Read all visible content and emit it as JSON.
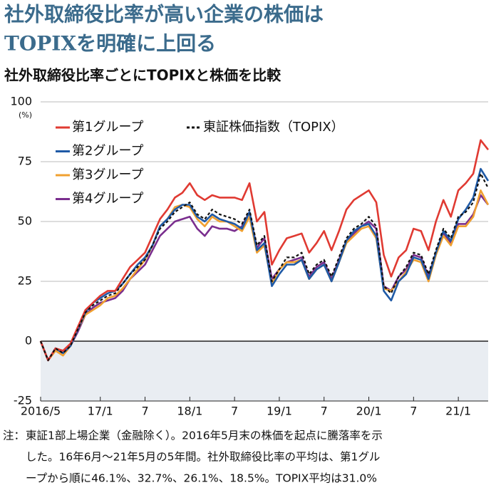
{
  "chart_data": {
    "type": "line",
    "title_lines": [
      "社外取締役比率が高い企業の株価は",
      "TOPIXを明確に上回る"
    ],
    "subtitle": "社外取締役比率ごとにTOPIXと株価を比較",
    "y_unit": "(%)",
    "note_label": "注：",
    "note_lines": [
      "東証1部上場企業（金融除く）。2016年5月末の株価を起点に騰落率を示",
      "した。16年6月～21年5月の5年間。社外取締役比率の平均は、第1グル",
      "ープから順に46.1%、32.7%、26.1%、18.5%。TOPIX平均は31.0%"
    ],
    "categories": [
      "2016/5",
      null,
      null,
      null,
      null,
      null,
      null,
      null,
      "17/1",
      null,
      null,
      null,
      null,
      null,
      "7",
      null,
      null,
      null,
      null,
      null,
      "18/1",
      null,
      null,
      null,
      null,
      null,
      "7",
      null,
      null,
      null,
      null,
      null,
      "19/1",
      null,
      null,
      null,
      null,
      null,
      "7",
      null,
      null,
      null,
      null,
      null,
      "20/1",
      null,
      null,
      null,
      null,
      null,
      "7",
      null,
      null,
      null,
      null,
      null,
      "21/1",
      null,
      null,
      null,
      null
    ],
    "series": [
      {
        "name": "第1グループ",
        "color": "#e03a32",
        "style": "solid",
        "values": [
          0,
          -8,
          -3,
          -4,
          -1,
          6,
          13,
          16,
          19,
          21,
          21,
          26,
          31,
          34,
          37,
          44,
          51,
          55,
          60,
          62,
          66,
          61,
          59,
          61,
          60,
          60,
          60,
          59,
          66,
          50,
          54,
          32,
          38,
          43,
          44,
          45,
          37,
          41,
          46,
          38,
          46,
          55,
          59,
          61,
          63,
          58,
          36,
          27,
          35,
          38,
          47,
          46,
          38,
          50,
          59,
          52,
          63,
          66,
          70,
          84,
          80
        ]
      },
      {
        "name": "第2グループ",
        "color": "#1f5aa6",
        "style": "solid",
        "values": [
          0,
          -8,
          -3,
          -5,
          -2,
          5,
          12,
          16,
          18,
          20,
          21,
          24,
          28,
          32,
          35,
          40,
          48,
          51,
          55,
          57,
          57,
          52,
          50,
          53,
          51,
          50,
          49,
          47,
          54,
          38,
          41,
          23,
          28,
          32,
          32,
          34,
          26,
          30,
          32,
          25,
          33,
          42,
          46,
          48,
          49,
          44,
          21,
          17,
          25,
          28,
          35,
          34,
          26,
          37,
          46,
          42,
          51,
          55,
          60,
          72,
          67
        ]
      },
      {
        "name": "第3グループ",
        "color": "#f0a030",
        "style": "solid",
        "values": [
          0,
          -8,
          -4,
          -6,
          -2,
          5,
          11,
          13,
          15,
          18,
          19,
          22,
          26,
          30,
          34,
          40,
          48,
          51,
          56,
          57,
          56,
          51,
          48,
          52,
          50,
          50,
          48,
          46,
          52,
          37,
          40,
          24,
          30,
          33,
          33,
          34,
          26,
          30,
          32,
          25,
          33,
          41,
          44,
          47,
          48,
          43,
          22,
          21,
          25,
          29,
          34,
          33,
          25,
          36,
          44,
          40,
          48,
          48,
          52,
          63,
          57
        ]
      },
      {
        "name": "第4グループ",
        "color": "#7a2e8e",
        "style": "solid",
        "values": [
          0,
          -8,
          -3,
          -5,
          -2,
          4,
          11,
          14,
          16,
          17,
          18,
          21,
          26,
          29,
          32,
          38,
          44,
          47,
          50,
          51,
          52,
          47,
          44,
          48,
          47,
          47,
          46,
          48,
          54,
          39,
          43,
          26,
          30,
          33,
          34,
          35,
          27,
          31,
          33,
          26,
          34,
          42,
          45,
          48,
          50,
          47,
          23,
          21,
          27,
          30,
          36,
          35,
          27,
          37,
          45,
          41,
          49,
          49,
          53,
          61,
          57
        ]
      },
      {
        "name": "東証株価指数（TOPIX）",
        "color": "#111111",
        "style": "dashed",
        "values": [
          0,
          -8,
          -3,
          -5,
          -2,
          5,
          12,
          15,
          17,
          19,
          20,
          24,
          28,
          31,
          34,
          40,
          47,
          50,
          54,
          56,
          58,
          53,
          51,
          55,
          53,
          52,
          51,
          49,
          55,
          40,
          44,
          25,
          30,
          35,
          35,
          37,
          28,
          32,
          34,
          27,
          35,
          43,
          47,
          49,
          52,
          48,
          23,
          20,
          27,
          31,
          37,
          36,
          28,
          38,
          47,
          43,
          52,
          54,
          58,
          70,
          64
        ]
      }
    ],
    "ylim": [
      -25,
      100
    ],
    "yticks": [
      -25,
      0,
      25,
      50,
      75,
      100
    ],
    "grid": true
  }
}
